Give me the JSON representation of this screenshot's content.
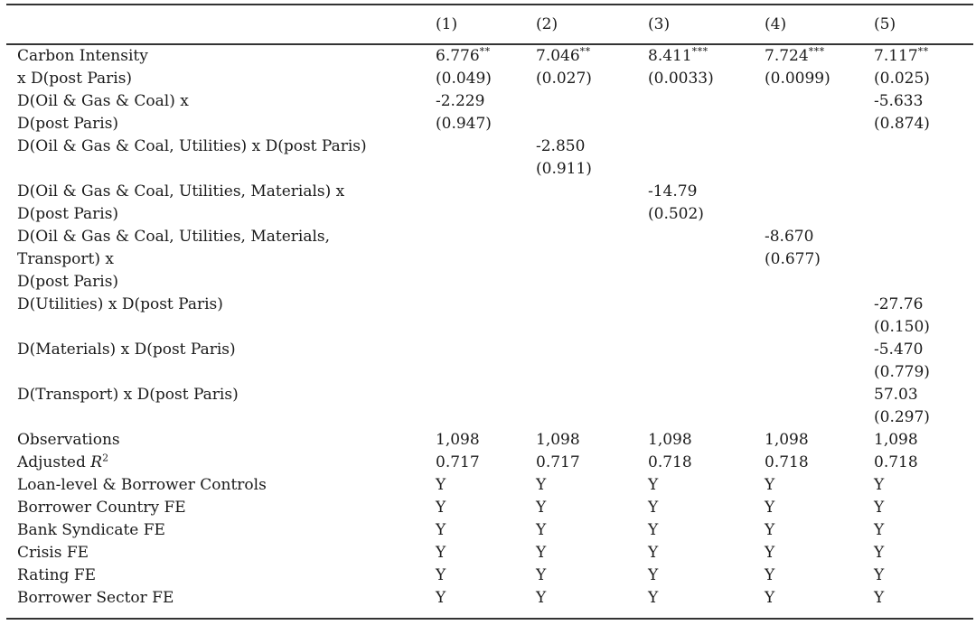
{
  "page": {
    "background": "#ffffff",
    "text_color": "#1a1a1a",
    "rule_color": "#333333"
  },
  "table": {
    "columns": [
      "",
      "(1)",
      "(2)",
      "(3)",
      "(4)",
      "(5)"
    ],
    "rows": [
      [
        "Carbon Intensity",
        "6.776**",
        "7.046**",
        "8.411***",
        "7.724***",
        "7.117**"
      ],
      [
        "x D(post Paris)",
        "(0.049)",
        "(0.027)",
        "(0.0033)",
        "(0.0099)",
        "(0.025)"
      ],
      [
        "D(Oil & Gas & Coal) x",
        "-2.229",
        "",
        "",
        "",
        "-5.633"
      ],
      [
        "D(post Paris)",
        "(0.947)",
        "",
        "",
        "",
        "(0.874)"
      ],
      [
        "D(Oil & Gas & Coal, Utilities) x D(post Paris)",
        "",
        "-2.850",
        "",
        "",
        ""
      ],
      [
        "",
        "",
        "(0.911)",
        "",
        "",
        ""
      ],
      [
        "D(Oil & Gas & Coal, Utilities, Materials) x",
        "",
        "",
        "-14.79",
        "",
        ""
      ],
      [
        "D(post Paris)",
        "",
        "",
        "(0.502)",
        "",
        ""
      ],
      [
        "D(Oil & Gas & Coal, Utilities, Materials,",
        "",
        "",
        "",
        "-8.670",
        ""
      ],
      [
        "Transport) x",
        "",
        "",
        "",
        "(0.677)",
        ""
      ],
      [
        "D(post Paris)",
        "",
        "",
        "",
        "",
        ""
      ],
      [
        "D(Utilities) x D(post Paris)",
        "",
        "",
        "",
        "",
        "-27.76"
      ],
      [
        "",
        "",
        "",
        "",
        "",
        "(0.150)"
      ],
      [
        "D(Materials) x D(post Paris)",
        "",
        "",
        "",
        "",
        "-5.470"
      ],
      [
        "",
        "",
        "",
        "",
        "",
        "(0.779)"
      ],
      [
        "D(Transport) x D(post Paris)",
        "",
        "",
        "",
        "",
        "57.03"
      ],
      [
        "",
        "",
        "",
        "",
        "",
        "(0.297)"
      ],
      [
        "Observations",
        "1,098",
        "1,098",
        "1,098",
        "1,098",
        "1,098"
      ],
      [
        "Adjusted R²",
        "0.717",
        "0.717",
        "0.718",
        "0.718",
        "0.718"
      ],
      [
        "Loan-level & Borrower Controls",
        "Y",
        "Y",
        "Y",
        "Y",
        "Y"
      ],
      [
        "Borrower Country FE",
        "Y",
        "Y",
        "Y",
        "Y",
        "Y"
      ],
      [
        "Bank Syndicate FE",
        "Y",
        "Y",
        "Y",
        "Y",
        "Y"
      ],
      [
        "Crisis FE",
        "Y",
        "Y",
        "Y",
        "Y",
        "Y"
      ],
      [
        "Rating FE",
        "Y",
        "Y",
        "Y",
        "Y",
        "Y"
      ],
      [
        "Borrower Sector FE",
        "Y",
        "Y",
        "Y",
        "Y",
        "Y"
      ]
    ]
  }
}
